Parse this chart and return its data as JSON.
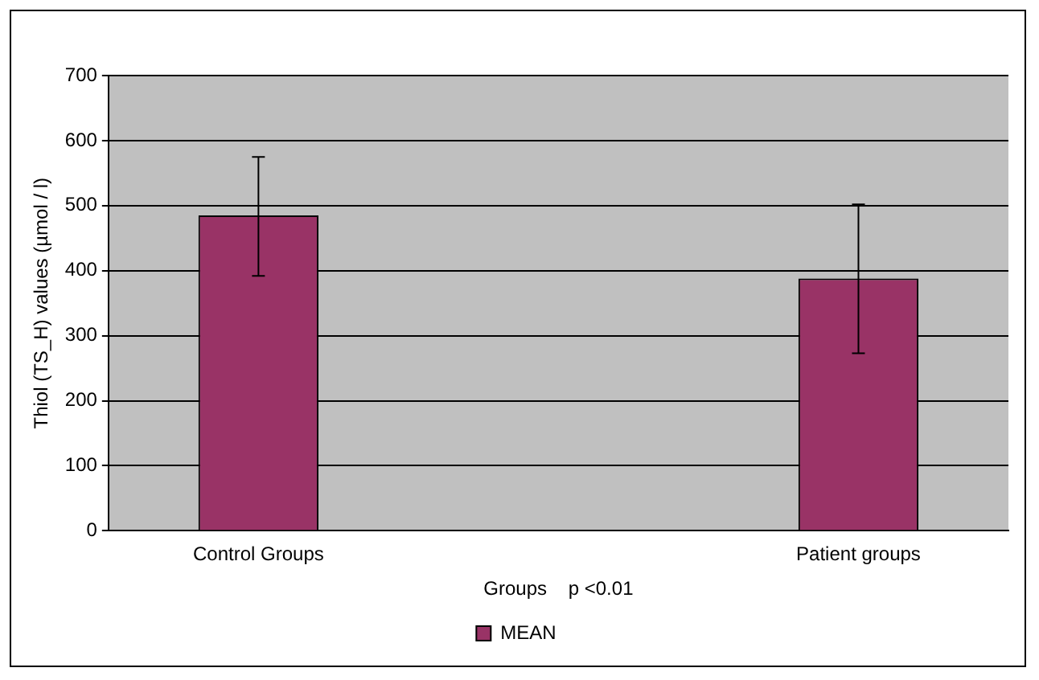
{
  "chart_data": {
    "type": "bar",
    "xlabel": "Groups    p <0.01",
    "ylabel": "Thiol (TS_H) values (µmol / l)",
    "categories": [
      "Control Groups",
      null,
      "Patient groups"
    ],
    "series": [
      {
        "name": "MEAN",
        "color": "#993366",
        "values": [
          485,
          null,
          388
        ],
        "errors": [
          [
            392,
            575
          ],
          null,
          [
            273,
            502
          ]
        ]
      }
    ],
    "ylim": [
      0,
      700
    ],
    "yticks": [
      0,
      100,
      200,
      300,
      400,
      500,
      600,
      700
    ],
    "grid": "y",
    "legend": "bottom"
  }
}
